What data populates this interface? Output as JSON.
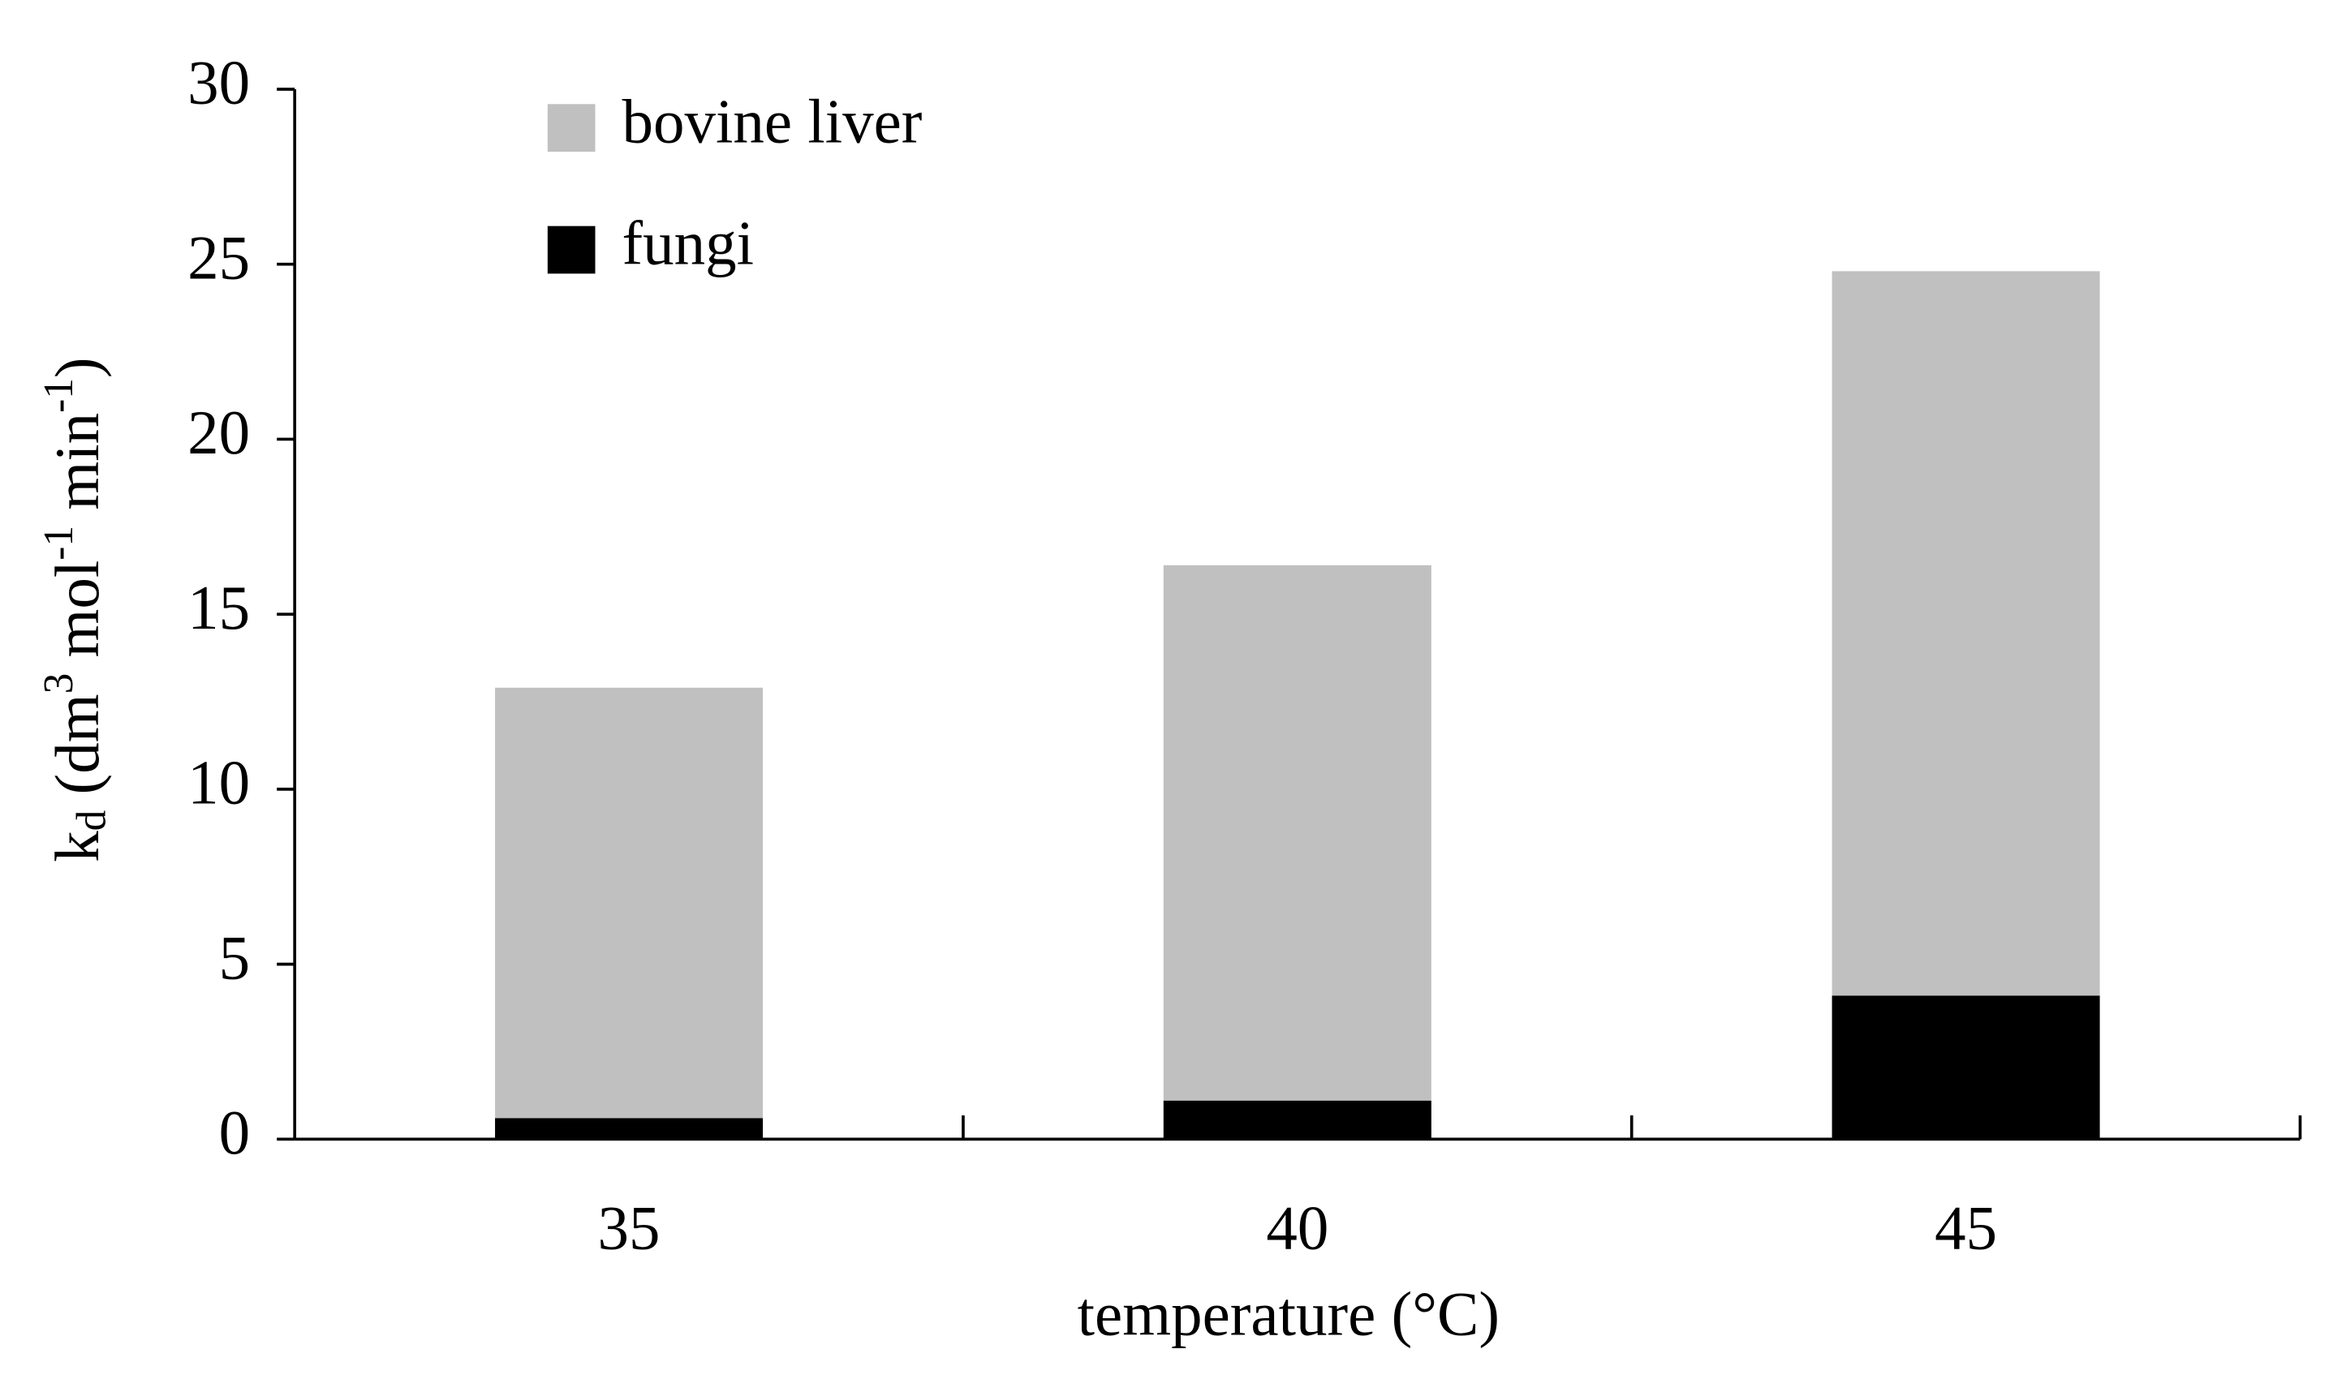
{
  "chart_data": {
    "type": "bar",
    "categories": [
      "35",
      "40",
      "45"
    ],
    "xlabel": "temperature  (°C)",
    "ylabel": [
      "k",
      "d",
      "  (dm",
      "3",
      " mol",
      "-1",
      " min",
      "-1",
      ")"
    ],
    "series": [
      {
        "name": "bovine liver",
        "color": "#c0c0c0",
        "values": [
          12.9,
          16.4,
          24.8
        ]
      },
      {
        "name": "fungi",
        "color": "#000000",
        "values": [
          0.6,
          1.1,
          4.1
        ]
      }
    ],
    "ylim": [
      0,
      30
    ],
    "yticks": [
      0,
      5,
      10,
      15,
      20,
      25,
      30
    ],
    "overlap": true
  }
}
